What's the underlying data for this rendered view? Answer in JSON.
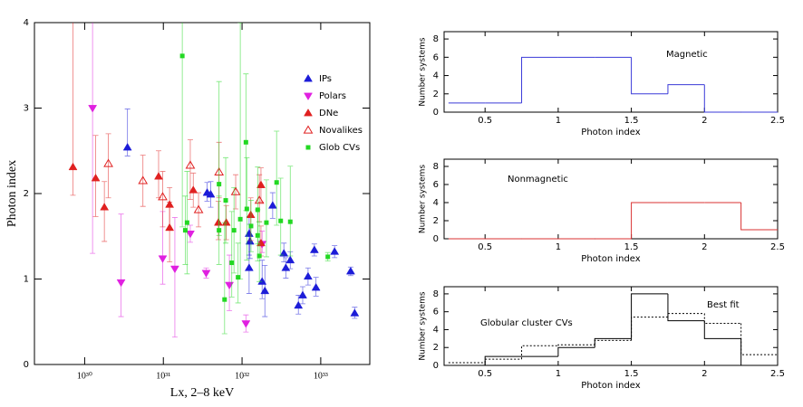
{
  "chart_data": [
    {
      "type": "scatter",
      "xlabel": "Lx, 2–8 keV",
      "ylabel": "Photon index",
      "xlog": true,
      "xlim": [
        2.3e+29,
        4.2e+33
      ],
      "ylim": [
        0,
        4
      ],
      "xticks": [
        {
          "value": 1e+30,
          "label": "10³⁰"
        },
        {
          "value": 1e+31,
          "label": "10³¹"
        },
        {
          "value": 1e+32,
          "label": "10³²"
        },
        {
          "value": 1e+33,
          "label": "10³³"
        }
      ],
      "yticks": [
        0,
        1,
        2,
        3,
        4
      ],
      "legend": "upper right",
      "series": [
        {
          "name": "IPs",
          "color": "#1c1cd8",
          "marker": "triangle-up",
          "x": [
            3.5e+30,
            3.6e+31,
            4e+31,
            1.23e+32,
            1.26e+32,
            1.23e+32,
            1.8e+32,
            1.95e+32,
            2.45e+32,
            3.4e+32,
            3.6e+32,
            4.1e+32,
            5.2e+32,
            5.9e+32,
            6.9e+32,
            8.3e+32,
            8.7e+32,
            1.5e+33,
            2.4e+33,
            2.7e+33
          ],
          "values": [
            2.54,
            2.01,
            1.99,
            1.53,
            1.44,
            1.13,
            0.97,
            0.86,
            1.86,
            1.3,
            1.13,
            1.22,
            0.69,
            0.81,
            1.03,
            1.34,
            0.9,
            1.32,
            1.09,
            0.6
          ],
          "err_minus": [
            0.1,
            0.1,
            0.15,
            0.25,
            0.2,
            0.3,
            0.2,
            0.3,
            0.15,
            0.1,
            0.12,
            0.1,
            0.1,
            0.1,
            0.1,
            0.07,
            0.1,
            0.07,
            0.05,
            0.06
          ],
          "err_plus": [
            0.45,
            0.12,
            0.15,
            0.2,
            0.2,
            0.3,
            0.25,
            0.3,
            0.15,
            0.12,
            0.12,
            0.1,
            0.12,
            0.1,
            0.1,
            0.07,
            0.12,
            0.07,
            0.05,
            0.07
          ]
        },
        {
          "name": "Polars",
          "color": "#e020e0",
          "marker": "triangle-down",
          "x": [
            1.26e+30,
            2.9e+30,
            9.8e+30,
            1.4e+31,
            2.2e+31,
            3.5e+31,
            6.9e+31,
            1.12e+32,
            1.8e+32
          ],
          "values": [
            3.0,
            0.96,
            1.24,
            1.12,
            1.53,
            1.07,
            0.93,
            0.48,
            1.41
          ],
          "err_minus": [
            1.7,
            0.4,
            0.3,
            0.8,
            0.1,
            0.06,
            0.3,
            0.1,
            0.1
          ],
          "err_plus": [
            1.1,
            0.8,
            0.55,
            0.6,
            0.1,
            0.06,
            0.35,
            0.1,
            0.15
          ]
        },
        {
          "name": "DNe",
          "color": "#e02020",
          "marker": "triangle-up",
          "x": [
            7.1e+29,
            1.38e+30,
            1.78e+30,
            8.7e+30,
            1.2e+31,
            1.2e+31,
            2.4e+31,
            5e+31,
            6.3e+31,
            1.29e+32,
            1.74e+32,
            1.74e+32
          ],
          "values": [
            2.31,
            2.18,
            1.84,
            2.2,
            1.87,
            1.6,
            2.04,
            1.66,
            1.66,
            1.75,
            2.1,
            1.42
          ],
          "err_minus": [
            0.33,
            0.45,
            0.4,
            0.25,
            0.3,
            0.4,
            0.2,
            0.2,
            0.2,
            0.3,
            0.2,
            0.15
          ],
          "err_plus": [
            1.8,
            0.5,
            0.3,
            0.3,
            0.2,
            0.3,
            0.2,
            0.25,
            0.2,
            0.2,
            0.2,
            0.2
          ]
        },
        {
          "name": "Novalikes",
          "color": "#e02020",
          "marker": "triangle-up-open",
          "x": [
            2e+30,
            5.5e+30,
            9.8e+30,
            2.2e+31,
            2.8e+31,
            5.1e+31,
            8.3e+31,
            1.66e+32
          ],
          "values": [
            2.35,
            2.15,
            1.96,
            2.33,
            1.81,
            2.25,
            2.02,
            1.92
          ],
          "err_minus": [
            0.4,
            0.3,
            0.35,
            0.4,
            0.2,
            0.3,
            0.2,
            0.25
          ],
          "err_plus": [
            0.35,
            0.3,
            0.3,
            0.3,
            0.2,
            0.35,
            0.2,
            0.3
          ]
        },
        {
          "name": "Glob CVs",
          "color": "#22d822",
          "marker": "square",
          "x": [
            1.74e+31,
            2e+31,
            1.9e+31,
            5.1e+31,
            5.1e+31,
            6e+31,
            6.2e+31,
            7.4e+31,
            7.9e+31,
            9.5e+31,
            1.12e+32,
            1.15e+32,
            1.3e+32,
            1.58e+32,
            1.58e+32,
            1.66e+32,
            2.04e+32,
            2.75e+32,
            3.1e+32,
            4.1e+32,
            1.23e+33,
            8.9e+31
          ],
          "values": [
            3.61,
            1.66,
            1.57,
            2.11,
            1.57,
            0.76,
            1.92,
            1.19,
            1.57,
            1.7,
            2.6,
            1.82,
            1.62,
            1.81,
            1.51,
            1.27,
            1.66,
            2.13,
            1.68,
            1.67,
            1.26,
            1.02
          ],
          "err_minus": [
            2.0,
            0.6,
            0.4,
            0.6,
            0.4,
            0.4,
            0.5,
            0.4,
            0.5,
            0.7,
            0.8,
            0.6,
            0.3,
            0.4,
            0.3,
            0.3,
            0.4,
            0.5,
            0.4,
            0.4,
            0.05,
            0.3
          ],
          "err_plus": [
            0.4,
            0.6,
            0.4,
            1.2,
            0.4,
            0.9,
            0.5,
            0.6,
            0.5,
            2.3,
            0.8,
            0.6,
            0.3,
            0.5,
            0.3,
            0.4,
            0.5,
            0.6,
            0.5,
            0.65,
            0.05,
            0.4
          ]
        }
      ]
    },
    {
      "type": "histogram",
      "xlabel": "Photon index",
      "ylabel": "Number systems",
      "xlim": [
        0.22,
        2.5
      ],
      "ylim": [
        0,
        8.8
      ],
      "xticks": [
        0.5,
        1,
        1.5,
        2,
        2.5
      ],
      "yticks": [
        0,
        2,
        4,
        6,
        8
      ],
      "bins": [
        0.25,
        0.5,
        0.75,
        1,
        1.25,
        1.5,
        1.75,
        2,
        2.25,
        2.5
      ],
      "series": [
        {
          "name": "Magnetic",
          "color": "#3a3ad8",
          "style": "solid",
          "values": [
            1,
            1,
            6,
            6,
            6,
            2,
            3,
            0,
            0
          ]
        }
      ]
    },
    {
      "type": "histogram",
      "xlabel": "Photon index",
      "ylabel": "Number systems",
      "xlim": [
        0.22,
        2.5
      ],
      "ylim": [
        0,
        8.8
      ],
      "xticks": [
        0.5,
        1,
        1.5,
        2,
        2.5
      ],
      "yticks": [
        0,
        2,
        4,
        6,
        8
      ],
      "bins": [
        0.25,
        0.5,
        0.75,
        1,
        1.25,
        1.5,
        1.75,
        2,
        2.25,
        2.5
      ],
      "series": [
        {
          "name": "Nonmagnetic",
          "color": "#d83030",
          "style": "solid",
          "values": [
            0,
            0,
            0,
            0,
            0,
            4,
            4,
            4,
            1
          ]
        }
      ]
    },
    {
      "type": "histogram",
      "xlabel": "Photon index",
      "ylabel": "Number systems",
      "xlim": [
        0.22,
        2.5
      ],
      "ylim": [
        0,
        8.8
      ],
      "xticks": [
        0.5,
        1,
        1.5,
        2,
        2.5
      ],
      "yticks": [
        0,
        2,
        4,
        6,
        8
      ],
      "bins": [
        0.25,
        0.5,
        0.75,
        1,
        1.25,
        1.5,
        1.75,
        2,
        2.25,
        2.5
      ],
      "series": [
        {
          "name": "Globular cluster CVs",
          "color": "#000000",
          "style": "solid",
          "values": [
            0,
            1,
            1,
            2,
            3,
            8,
            5,
            3,
            0
          ]
        },
        {
          "name": "Best fit",
          "color": "#000000",
          "style": "dotted",
          "values": [
            0.3,
            0.7,
            2.2,
            2.3,
            2.8,
            5.4,
            5.8,
            4.7,
            1.2
          ]
        }
      ]
    }
  ]
}
